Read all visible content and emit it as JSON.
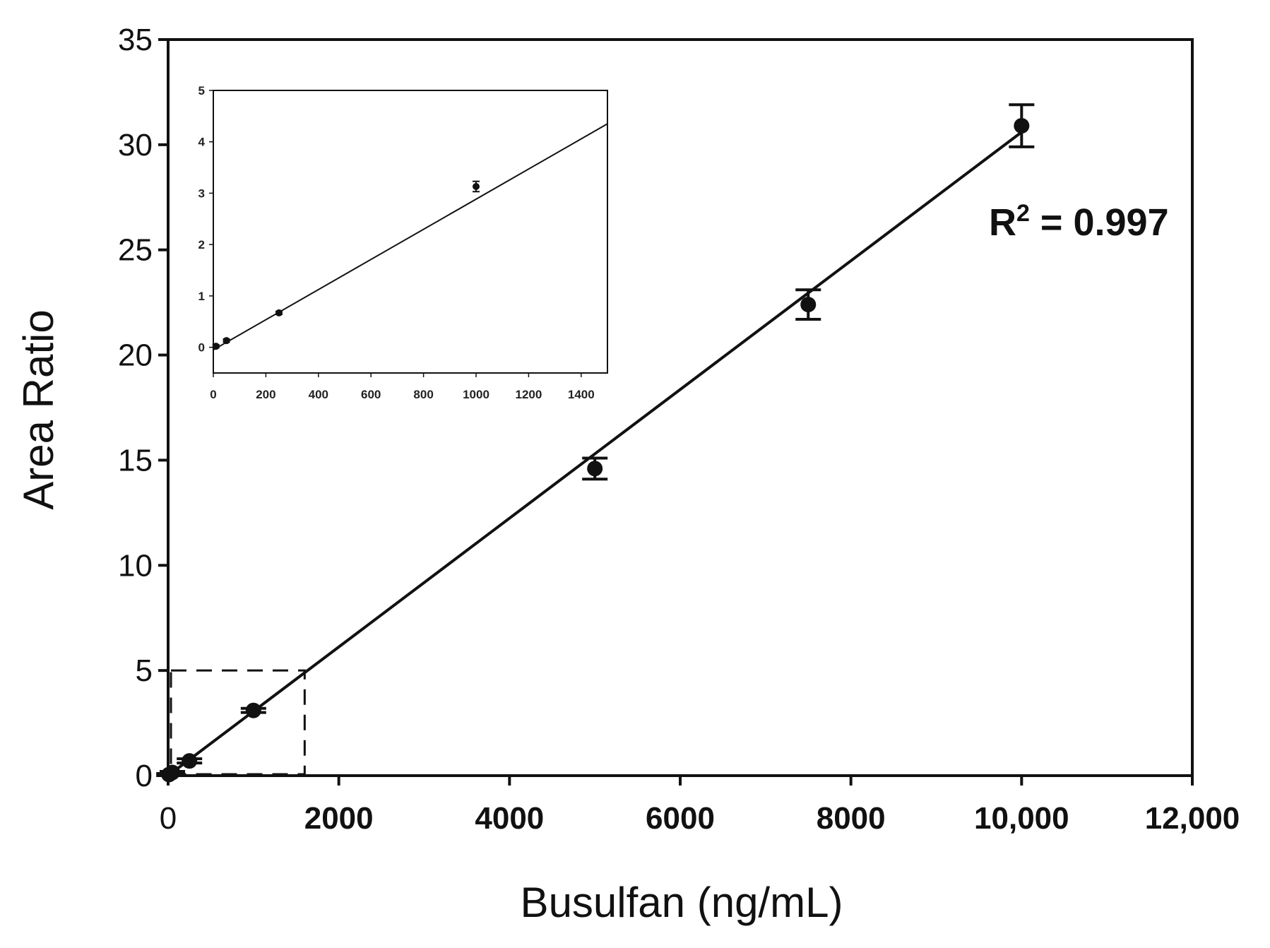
{
  "chart_data": [
    {
      "type": "scatter",
      "title": "",
      "xlabel": "Busulfan (ng/mL)",
      "ylabel": "Area Ratio",
      "xlim": [
        0,
        12000
      ],
      "ylim": [
        0,
        35
      ],
      "xticks": [
        0,
        2000,
        4000,
        6000,
        8000,
        10000,
        12000
      ],
      "xtick_labels": [
        "0",
        "2000",
        "4000",
        "6000",
        "8000",
        "10,000",
        "12,000"
      ],
      "yticks": [
        0,
        5,
        10,
        15,
        20,
        25,
        30,
        35
      ],
      "ytick_labels": [
        "0",
        "5",
        "10",
        "15",
        "20",
        "25",
        "30",
        "35"
      ],
      "grid": false,
      "points": [
        {
          "x": 10,
          "y": 0.05,
          "err": 0.05
        },
        {
          "x": 50,
          "y": 0.15,
          "err": 0.05
        },
        {
          "x": 250,
          "y": 0.7,
          "err": 0.1
        },
        {
          "x": 1000,
          "y": 3.1,
          "err": 0.1
        },
        {
          "x": 5000,
          "y": 14.6,
          "err": 0.5
        },
        {
          "x": 7500,
          "y": 22.4,
          "err": 0.7
        },
        {
          "x": 10000,
          "y": 30.9,
          "err": 1.0
        }
      ],
      "fit_line": {
        "x": [
          0,
          10000
        ],
        "y": [
          0.0,
          30.6
        ]
      },
      "annotation": {
        "prefix": "R",
        "superscript": "2",
        "suffix": " = 0.997"
      },
      "zoom_box": {
        "x": [
          0,
          1600
        ],
        "y": [
          0,
          5
        ]
      }
    },
    {
      "type": "scatter",
      "title": "",
      "xlim": [
        0,
        1500
      ],
      "ylim": [
        -0.5,
        5
      ],
      "xticks": [
        0,
        200,
        400,
        600,
        800,
        1000,
        1200,
        1400
      ],
      "xtick_labels": [
        "0",
        "200",
        "400",
        "600",
        "800",
        "1000",
        "1200",
        "1400"
      ],
      "yticks": [
        0,
        1,
        2,
        3,
        4,
        5
      ],
      "ytick_labels": [
        "0",
        "1",
        "2",
        "3",
        "4",
        "5"
      ],
      "grid": false,
      "points": [
        {
          "x": 10,
          "y": 0.02,
          "err": 0.03
        },
        {
          "x": 50,
          "y": 0.13,
          "err": 0.03
        },
        {
          "x": 250,
          "y": 0.67,
          "err": 0.03
        },
        {
          "x": 1000,
          "y": 3.13,
          "err": 0.1
        }
      ],
      "fit_line": {
        "x": [
          0,
          1500
        ],
        "y": [
          -0.05,
          4.35
        ]
      }
    }
  ]
}
